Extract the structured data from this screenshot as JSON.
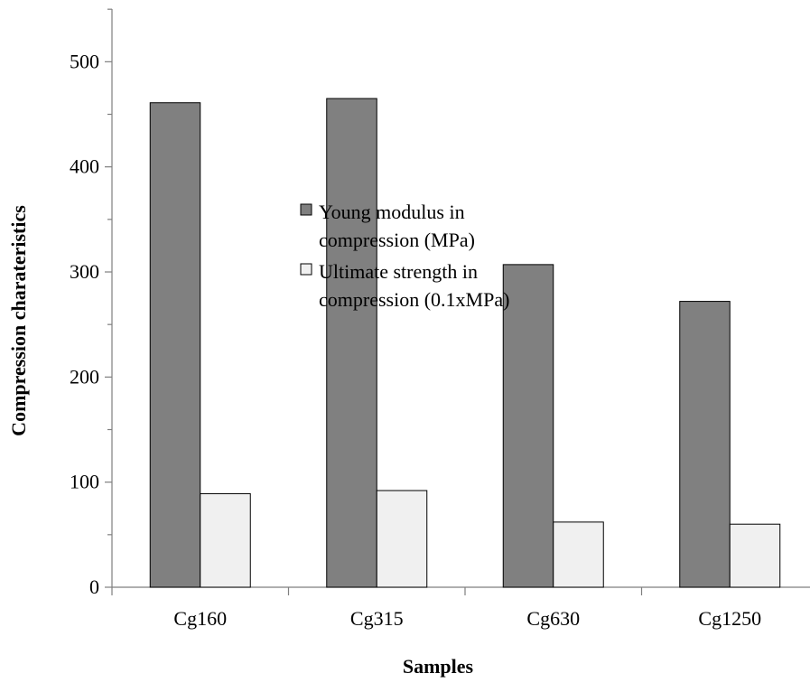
{
  "chart_data": {
    "type": "bar",
    "categories": [
      "Cg160",
      "Cg315",
      "Cg630",
      "Cg1250"
    ],
    "series": [
      {
        "name": "Young modulus in compression (MPa)",
        "legend_lines": [
          "Young modulus in",
          "compression (MPa)"
        ],
        "values": [
          461,
          465,
          307,
          272
        ],
        "color": "#808080"
      },
      {
        "name": "Ultimate strength in compression (0.1xMPa)",
        "legend_lines": [
          "Ultimate strength in",
          "compression (0.1xMPa)"
        ],
        "values": [
          89,
          92,
          62,
          60
        ],
        "color": "#f0f0f0"
      }
    ],
    "xlabel": "Samples",
    "ylabel": "Compression charateristics",
    "ylim": [
      0,
      550
    ],
    "yticks": [
      0,
      100,
      200,
      300,
      400,
      500
    ],
    "grid": false,
    "legend_position": "center"
  }
}
